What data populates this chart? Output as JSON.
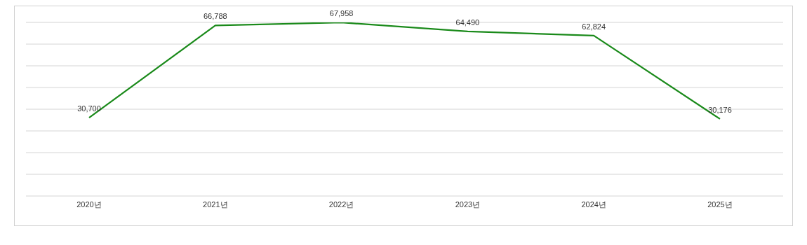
{
  "chart_data": {
    "type": "line",
    "categories": [
      "2020년",
      "2021년",
      "2022년",
      "2023년",
      "2024년",
      "2025년"
    ],
    "series": [
      {
        "color": "#1a8a1a",
        "values": [
          30700,
          66788,
          67958,
          64490,
          62824,
          30176
        ],
        "value_labels": [
          "30,700",
          "66,788",
          "67,958",
          "64,490",
          "62,824",
          "30,176"
        ]
      }
    ],
    "grid": "y",
    "marker": "none",
    "line_style": "solid",
    "tick_labels": "x"
  }
}
